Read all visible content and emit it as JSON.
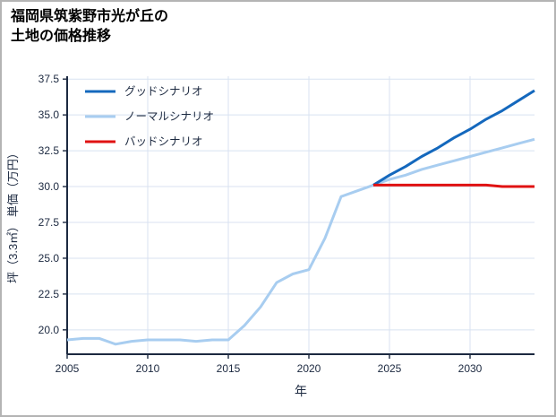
{
  "title": {
    "line1": "福岡県筑紫野市光が丘の",
    "line2": "土地の価格推移"
  },
  "chart_data": {
    "type": "line",
    "title": "福岡県筑紫野市光が丘の土地の価格推移",
    "xlabel": "年",
    "ylabel": "坪（3.3㎡） 単価（万円）",
    "xlim": [
      2005,
      2034
    ],
    "ylim": [
      18.3,
      37.7
    ],
    "x_ticks": [
      2005,
      2010,
      2015,
      2020,
      2025,
      2030
    ],
    "y_ticks": [
      20.0,
      22.5,
      25.0,
      27.5,
      30.0,
      32.5,
      35.0,
      37.5
    ],
    "grid": true,
    "legend_position": "upper left",
    "series": [
      {
        "name": "グッドシナリオ",
        "color": "#1468bd",
        "x": [
          2024,
          2025,
          2026,
          2027,
          2028,
          2029,
          2030,
          2031,
          2032,
          2033,
          2034
        ],
        "values": [
          30.1,
          30.8,
          31.4,
          32.1,
          32.7,
          33.4,
          34.0,
          34.7,
          35.3,
          36.0,
          36.7
        ]
      },
      {
        "name": "ノーマルシナリオ",
        "color": "#a8cdf0",
        "x": [
          2005,
          2006,
          2007,
          2008,
          2009,
          2010,
          2011,
          2012,
          2013,
          2014,
          2015,
          2016,
          2017,
          2018,
          2019,
          2020,
          2021,
          2022,
          2023,
          2024,
          2025,
          2026,
          2027,
          2028,
          2029,
          2030,
          2031,
          2032,
          2033,
          2034
        ],
        "values": [
          19.3,
          19.4,
          19.4,
          19.0,
          19.2,
          19.3,
          19.3,
          19.3,
          19.2,
          19.3,
          19.3,
          20.3,
          21.6,
          23.3,
          23.9,
          24.2,
          26.4,
          29.3,
          29.7,
          30.1,
          30.5,
          30.8,
          31.2,
          31.5,
          31.8,
          32.1,
          32.4,
          32.7,
          33.0,
          33.3
        ]
      },
      {
        "name": "バッドシナリオ",
        "color": "#e01212",
        "x": [
          2024,
          2025,
          2026,
          2027,
          2028,
          2029,
          2030,
          2031,
          2032,
          2033,
          2034
        ],
        "values": [
          30.1,
          30.1,
          30.1,
          30.1,
          30.1,
          30.1,
          30.1,
          30.1,
          30.0,
          30.0,
          30.0
        ]
      }
    ]
  },
  "colors": {
    "grid": "#d8e2f1",
    "axis": "#1c2940",
    "tick_text": "#1c2940",
    "title_text": "#000000"
  }
}
